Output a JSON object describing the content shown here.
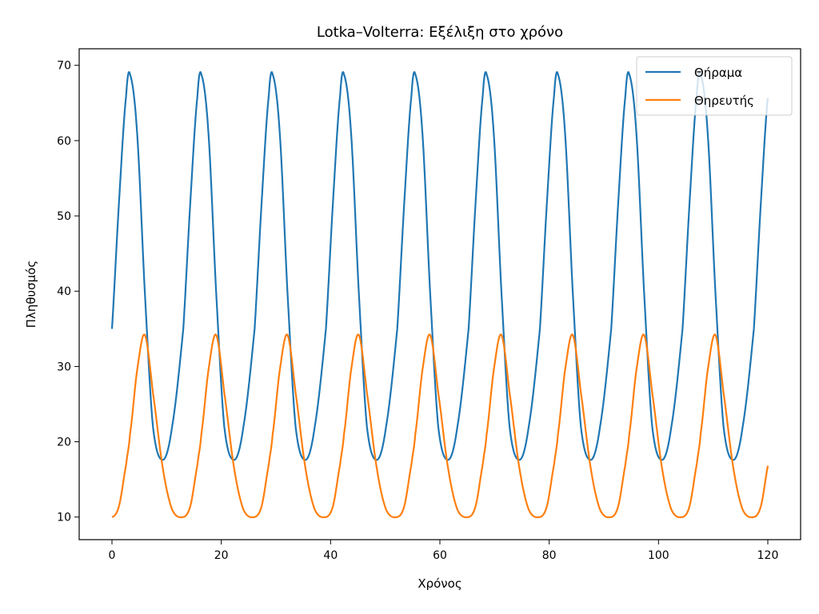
{
  "chart_data": {
    "type": "line",
    "title": "Lotka–Volterra: Εξέλιξη στο χρόνο",
    "xlabel": "Χρόνος",
    "ylabel": "Πληθυσμός",
    "xlim": [
      -6,
      126
    ],
    "ylim": [
      7,
      72.2
    ],
    "x_ticks": [
      0,
      20,
      40,
      60,
      80,
      100,
      120
    ],
    "y_ticks": [
      10,
      20,
      30,
      40,
      50,
      60,
      70
    ],
    "x_tick_labels": [
      "0",
      "20",
      "40",
      "60",
      "80",
      "100",
      "120"
    ],
    "y_tick_labels": [
      "10",
      "20",
      "30",
      "40",
      "50",
      "60",
      "70"
    ],
    "grid": false,
    "legend_position": "upper right",
    "series": [
      {
        "name": "Θήραμα",
        "color": "#1f77b4",
        "period": 13.05,
        "x": [
          0,
          1.3,
          2.6,
          3.3,
          4.6,
          6.0,
          7.5,
          9.3,
          11.0,
          13.05
        ],
        "y": [
          35,
          52,
          66,
          68.8,
          61,
          40,
          22,
          17.6,
          22,
          35
        ]
      },
      {
        "name": "Θηρευτής",
        "color": "#ff7f0e",
        "period": 13.05,
        "x": [
          0,
          1.3,
          2.6,
          3.3,
          4.6,
          6.0,
          7.5,
          9.3,
          11.0,
          13.05
        ],
        "y": [
          10,
          11.5,
          17,
          21,
          29.5,
          34.2,
          26.5,
          16.5,
          11.0,
          10
        ]
      }
    ],
    "x_end": 120
  }
}
